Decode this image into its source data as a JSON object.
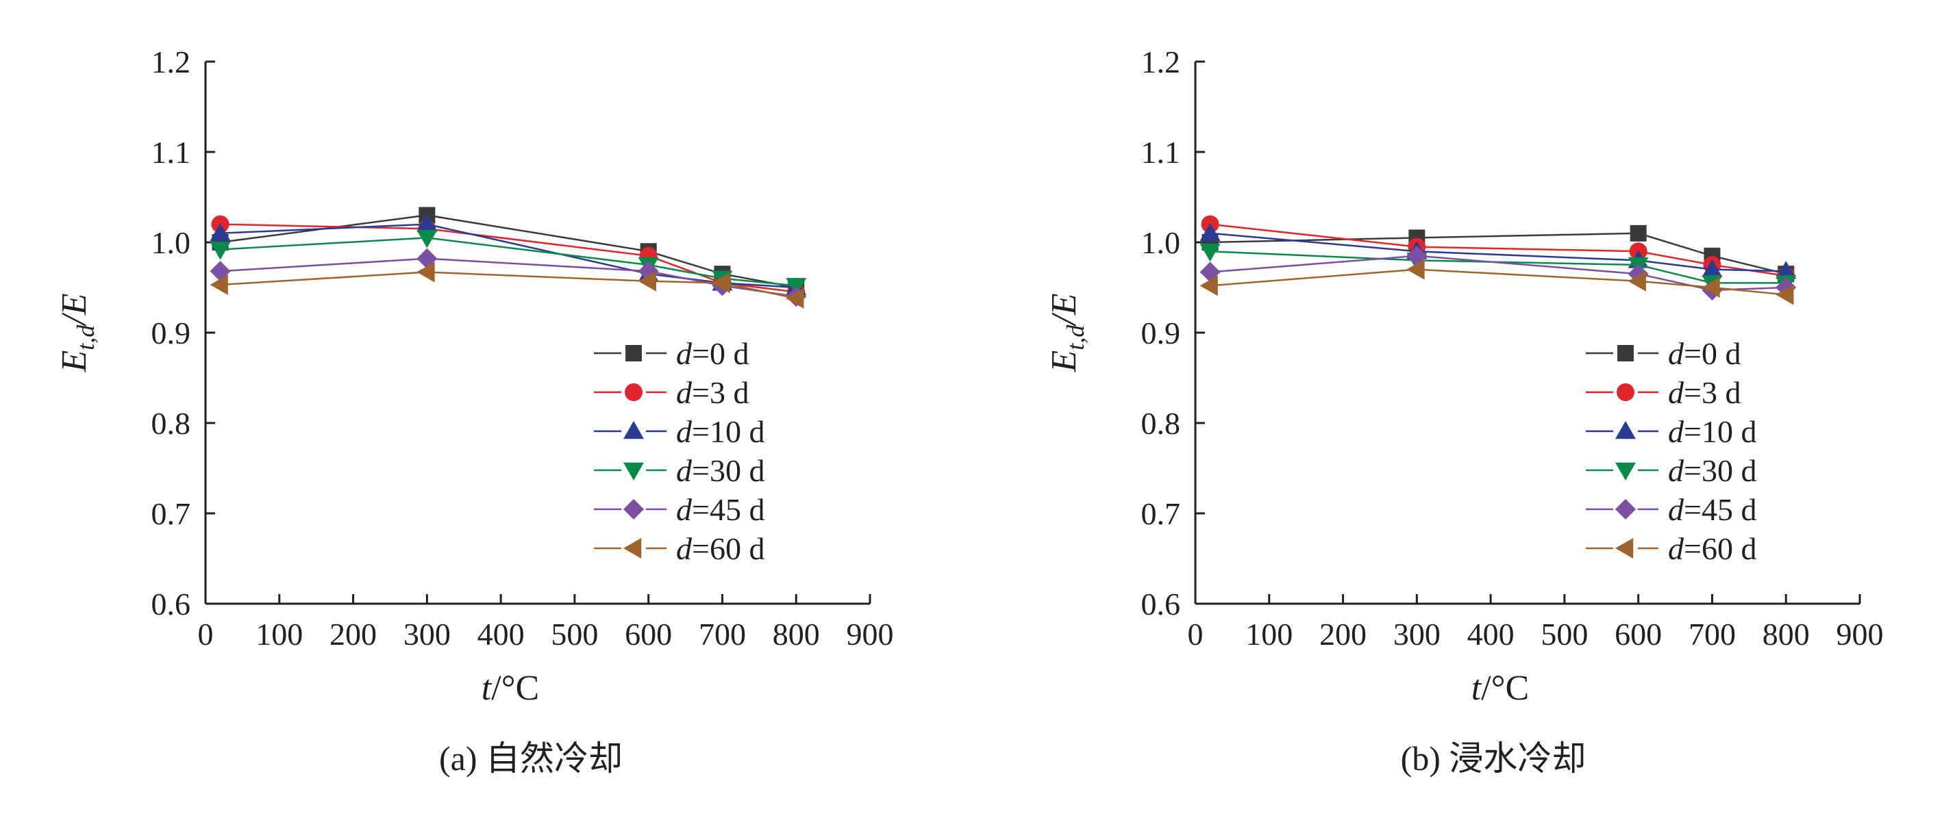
{
  "chart_data": [
    {
      "type": "line",
      "caption": "(a) 自然冷却",
      "xlabel_var": "t",
      "xlabel_unit": "/°C",
      "ylabel_main": "E",
      "ylabel_sub": "t,d",
      "ylabel_tail": "/E",
      "xlim": [
        0,
        900
      ],
      "ylim": [
        0.6,
        1.2
      ],
      "xticks": [
        "0",
        "100",
        "200",
        "300",
        "400",
        "500",
        "600",
        "700",
        "800",
        "900"
      ],
      "yticks": [
        "0.6",
        "0.7",
        "0.8",
        "0.9",
        "1.0",
        "1.1",
        "1.2"
      ],
      "grid": false,
      "legend_position": "lower-right",
      "x": [
        20,
        300,
        600,
        700,
        800
      ],
      "series": [
        {
          "name": "d=0 d",
          "label_var": "d",
          "label_rest": "=0 d",
          "color": "#3a3a3a",
          "marker": "square",
          "values": [
            1.0,
            1.03,
            0.99,
            0.965,
            0.95
          ]
        },
        {
          "name": "d=3 d",
          "label_var": "d",
          "label_rest": "=3 d",
          "color": "#e0262b",
          "marker": "circle",
          "values": [
            1.02,
            1.015,
            0.985,
            0.955,
            0.945
          ]
        },
        {
          "name": "d=10 d",
          "label_var": "d",
          "label_rest": "=10 d",
          "color": "#2b3a93",
          "marker": "triangle-up",
          "values": [
            1.01,
            1.02,
            0.965,
            0.955,
            0.95
          ]
        },
        {
          "name": "d=30 d",
          "label_var": "d",
          "label_rest": "=30 d",
          "color": "#0a8a4a",
          "marker": "triangle-down",
          "values": [
            0.992,
            1.005,
            0.975,
            0.96,
            0.952
          ]
        },
        {
          "name": "d=45 d",
          "label_var": "d",
          "label_rest": "=45 d",
          "color": "#7b4fa3",
          "marker": "diamond",
          "values": [
            0.968,
            0.982,
            0.968,
            0.952,
            0.94
          ]
        },
        {
          "name": "d=60 d",
          "label_var": "d",
          "label_rest": "=60 d",
          "color": "#a0642a",
          "marker": "triangle-left",
          "values": [
            0.953,
            0.967,
            0.957,
            0.955,
            0.938
          ]
        }
      ]
    },
    {
      "type": "line",
      "caption": "(b) 浸水冷却",
      "xlabel_var": "t",
      "xlabel_unit": "/°C",
      "ylabel_main": "E",
      "ylabel_sub": "t,d",
      "ylabel_tail": "/E",
      "xlim": [
        0,
        900
      ],
      "ylim": [
        0.6,
        1.2
      ],
      "xticks": [
        "0",
        "100",
        "200",
        "300",
        "400",
        "500",
        "600",
        "700",
        "800",
        "900"
      ],
      "yticks": [
        "0.6",
        "0.7",
        "0.8",
        "0.9",
        "1.0",
        "1.1",
        "1.2"
      ],
      "grid": false,
      "legend_position": "lower-right",
      "x": [
        20,
        300,
        600,
        700,
        800
      ],
      "series": [
        {
          "name": "d=0 d",
          "label_var": "d",
          "label_rest": "=0 d",
          "color": "#3a3a3a",
          "marker": "square",
          "values": [
            1.0,
            1.005,
            1.01,
            0.985,
            0.965
          ]
        },
        {
          "name": "d=3 d",
          "label_var": "d",
          "label_rest": "=3 d",
          "color": "#e0262b",
          "marker": "circle",
          "values": [
            1.02,
            0.995,
            0.99,
            0.975,
            0.963
          ]
        },
        {
          "name": "d=10 d",
          "label_var": "d",
          "label_rest": "=10 d",
          "color": "#2b3a93",
          "marker": "triangle-up",
          "values": [
            1.01,
            0.99,
            0.98,
            0.97,
            0.968
          ]
        },
        {
          "name": "d=30 d",
          "label_var": "d",
          "label_rest": "=30 d",
          "color": "#0a8a4a",
          "marker": "triangle-down",
          "values": [
            0.99,
            0.98,
            0.975,
            0.955,
            0.955
          ]
        },
        {
          "name": "d=45 d",
          "label_var": "d",
          "label_rest": "=45 d",
          "color": "#7b4fa3",
          "marker": "diamond",
          "values": [
            0.967,
            0.985,
            0.965,
            0.947,
            0.95
          ]
        },
        {
          "name": "d=60 d",
          "label_var": "d",
          "label_rest": "=60 d",
          "color": "#a0642a",
          "marker": "triangle-left",
          "values": [
            0.952,
            0.97,
            0.957,
            0.95,
            0.942
          ]
        }
      ]
    }
  ]
}
